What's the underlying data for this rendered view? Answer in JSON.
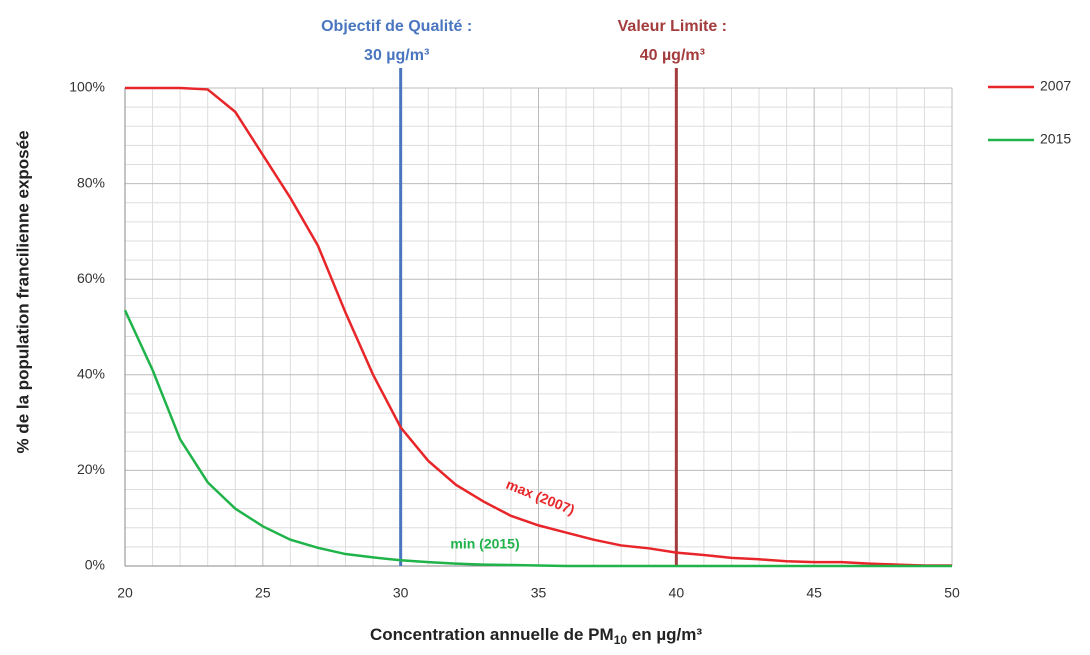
{
  "chart_data": {
    "type": "line",
    "x_label": [
      "Concentration annuelle de PM",
      "10",
      " en µg/m³"
    ],
    "y_label": "% de la population francilienne exposée",
    "x": [
      20,
      21,
      22,
      23,
      24,
      25,
      26,
      27,
      28,
      29,
      30,
      31,
      32,
      33,
      34,
      35,
      36,
      37,
      38,
      39,
      40,
      41,
      42,
      43,
      44,
      45,
      46,
      47,
      48,
      49,
      50
    ],
    "series": [
      {
        "name": "2007",
        "color": "#e8262a",
        "values": [
          100,
          100,
          100,
          99.7,
          95,
          86,
          77,
          67,
          53,
          40,
          29,
          22,
          17,
          13.5,
          10.5,
          8.5,
          7,
          5.5,
          4.3,
          3.7,
          2.8,
          2.3,
          1.7,
          1.4,
          1,
          0.8,
          0.8,
          0.5,
          0.3,
          0.1,
          0.1
        ]
      },
      {
        "name": "2015",
        "color": "#1fb34a",
        "values": [
          53.5,
          41,
          26.5,
          17.5,
          12,
          8.3,
          5.5,
          3.8,
          2.5,
          1.8,
          1.2,
          0.8,
          0.5,
          0.3,
          0.2,
          0.1,
          0,
          0,
          0,
          0,
          0,
          0,
          0,
          0,
          0,
          0,
          0,
          0,
          0,
          0,
          0
        ]
      }
    ],
    "xlim": [
      20,
      50
    ],
    "xticks": [
      20,
      25,
      30,
      35,
      40,
      45,
      50
    ],
    "ylim": [
      0,
      100
    ],
    "yticks": [
      {
        "value": 0,
        "label": "0%"
      },
      {
        "value": 20,
        "label": "20%"
      },
      {
        "value": 40,
        "label": "40%"
      },
      {
        "value": 60,
        "label": "60%"
      },
      {
        "value": 80,
        "label": "80%"
      },
      {
        "value": 100,
        "label": "100%"
      }
    ],
    "grid": true,
    "legend": "right",
    "ref_lines": [
      {
        "x": 30,
        "color": "#4a76c0",
        "label": [
          "Objectif de Qualité :",
          "30 µg/m³"
        ]
      },
      {
        "x": 40,
        "color": "#a33c3c",
        "label": [
          "Valeur Limite :",
          "40 µg/m³"
        ]
      }
    ],
    "annotations": [
      "max (2007)",
      "min (2015)"
    ]
  }
}
